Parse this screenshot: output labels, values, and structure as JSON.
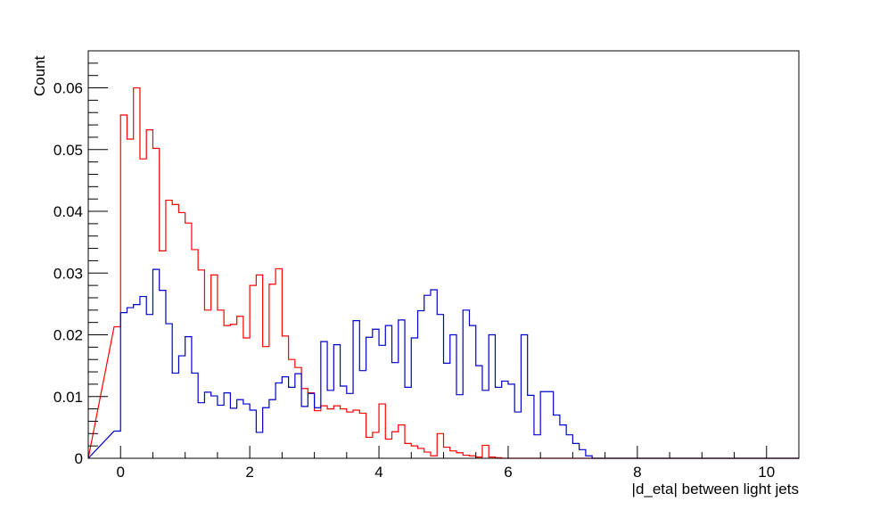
{
  "chart_data": {
    "type": "histogram",
    "title": "",
    "xlabel": "|d_eta| between light jets",
    "ylabel": "Count",
    "xlim": [
      -0.5,
      10.5
    ],
    "ylim": [
      0,
      0.066
    ],
    "xticks": [
      0,
      2,
      4,
      6,
      8,
      10
    ],
    "yticks": [
      0,
      0.01,
      0.02,
      0.03,
      0.04,
      0.05,
      0.06
    ],
    "xtick_labels": [
      "0",
      "2",
      "4",
      "6",
      "8",
      "10"
    ],
    "ytick_labels": [
      "0",
      "0.01",
      "0.02",
      "0.03",
      "0.04",
      "0.05",
      "0.06"
    ],
    "grid": false,
    "legend": "none",
    "bin_start": -0.1,
    "bin_width": 0.1,
    "series": [
      {
        "color": "#ff0000",
        "values": [
          0.0213,
          0.0556,
          0.0517,
          0.06,
          0.0485,
          0.0532,
          0.0502,
          0.0336,
          0.0418,
          0.0411,
          0.0398,
          0.0381,
          0.0338,
          0.0305,
          0.024,
          0.0297,
          0.024,
          0.0215,
          0.0217,
          0.023,
          0.0195,
          0.028,
          0.0297,
          0.0181,
          0.0282,
          0.0307,
          0.0198,
          0.016,
          0.0147,
          0.0113,
          0.0106,
          0.0077,
          0.0085,
          0.008,
          0.0085,
          0.008,
          0.0075,
          0.0078,
          0.0073,
          0.0034,
          0.0042,
          0.0088,
          0.0031,
          0.0043,
          0.0054,
          0.0024,
          0.002,
          0.0016,
          0.001,
          0.0004,
          0.004,
          0.0018,
          0.0012,
          0.0009,
          0.0005,
          0.0004,
          0.0002,
          0.0021,
          0.0002,
          0.0001
        ]
      },
      {
        "color": "#0000cc",
        "values": [
          0.0044,
          0.0236,
          0.0244,
          0.0249,
          0.0262,
          0.0233,
          0.0306,
          0.0272,
          0.0218,
          0.0138,
          0.0166,
          0.0197,
          0.0138,
          0.009,
          0.0107,
          0.0101,
          0.0086,
          0.0106,
          0.0081,
          0.0095,
          0.0088,
          0.0078,
          0.0042,
          0.0082,
          0.0095,
          0.0122,
          0.0132,
          0.0115,
          0.0137,
          0.0084,
          0.0105,
          0.0082,
          0.0189,
          0.011,
          0.0184,
          0.0117,
          0.0105,
          0.0223,
          0.0142,
          0.0196,
          0.0209,
          0.0183,
          0.0215,
          0.0155,
          0.0224,
          0.0115,
          0.0195,
          0.0239,
          0.0264,
          0.0273,
          0.0233,
          0.0154,
          0.02,
          0.0103,
          0.024,
          0.0215,
          0.015,
          0.011,
          0.02,
          0.0115,
          0.0125,
          0.012,
          0.0075,
          0.02,
          0.0102,
          0.0038,
          0.0108,
          0.0108,
          0.007,
          0.0054,
          0.0038,
          0.0024,
          0.0014,
          0.0004
        ]
      }
    ]
  }
}
